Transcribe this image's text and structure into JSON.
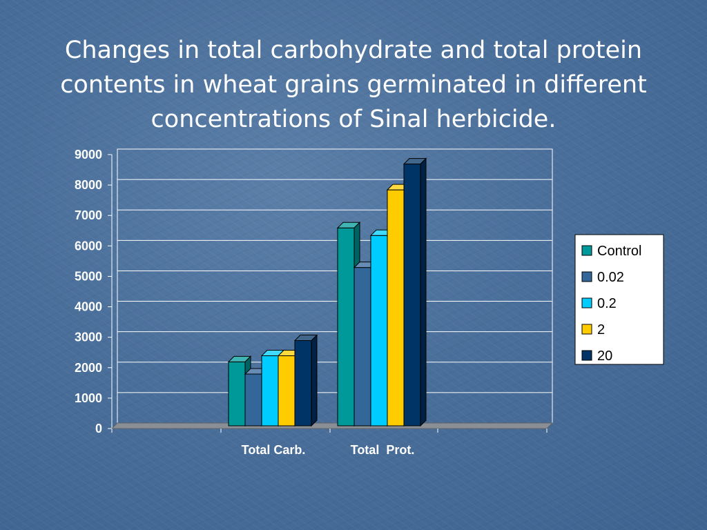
{
  "title": "Changes in total carbohydrate and total protein contents in wheat grains germinated in different concentrations of Sinal herbicide.",
  "colors": {
    "background": "#4a6f9a",
    "Control": "#009999",
    "0.02": "#336699",
    "0.2": "#00ccff",
    "2": "#ffcc00",
    "20": "#003366"
  },
  "chart_data": {
    "type": "bar",
    "title": "",
    "xlabel": "",
    "ylabel": "",
    "ylim": [
      0,
      9000
    ],
    "yticks": [
      0,
      1000,
      2000,
      3000,
      4000,
      5000,
      6000,
      7000,
      8000,
      9000
    ],
    "grid": true,
    "legend_position": "right",
    "categories": [
      "Total Carb.",
      "Total  Prot."
    ],
    "series": [
      {
        "name": "Control",
        "values": [
          2100,
          6500
        ]
      },
      {
        "name": "0.02",
        "values": [
          1700,
          5200
        ]
      },
      {
        "name": "0.2",
        "values": [
          2300,
          6250
        ]
      },
      {
        "name": "2",
        "values": [
          2300,
          7750
        ]
      },
      {
        "name": "20",
        "values": [
          2800,
          8600
        ]
      }
    ]
  }
}
